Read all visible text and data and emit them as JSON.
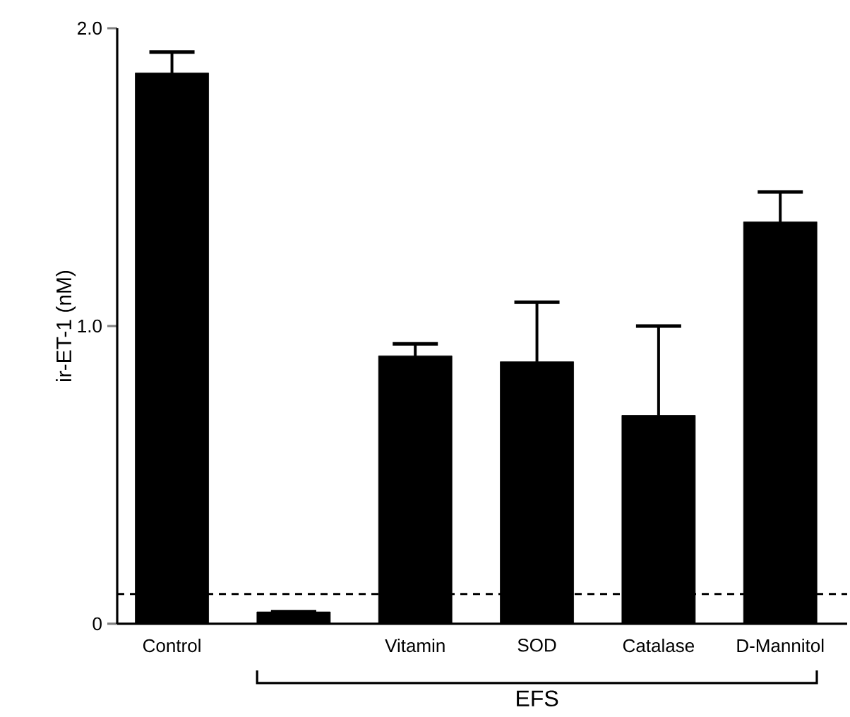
{
  "chart_data": {
    "type": "bar",
    "ylabel": "ir-ET-1 (nM)",
    "categories": [
      "Control",
      null,
      "Vitamin",
      "SOD",
      "Catalase",
      "D-Mannitol"
    ],
    "values": [
      1.85,
      0.04,
      0.9,
      0.88,
      0.7,
      1.35
    ],
    "errors": [
      0.07,
      null,
      0.04,
      0.2,
      0.3,
      0.1
    ],
    "color": "#000000",
    "ylim": [
      0,
      2.0
    ],
    "yticks": [
      0,
      {
        "value": 1.0,
        "label": "1.0"
      },
      {
        "value": 2.0,
        "label": "2.0"
      }
    ],
    "ref_lines": [
      {
        "axis": "y",
        "value": 0.1,
        "line_style": "dashed"
      }
    ],
    "annotations": [
      "EFS"
    ],
    "grid": false
  }
}
